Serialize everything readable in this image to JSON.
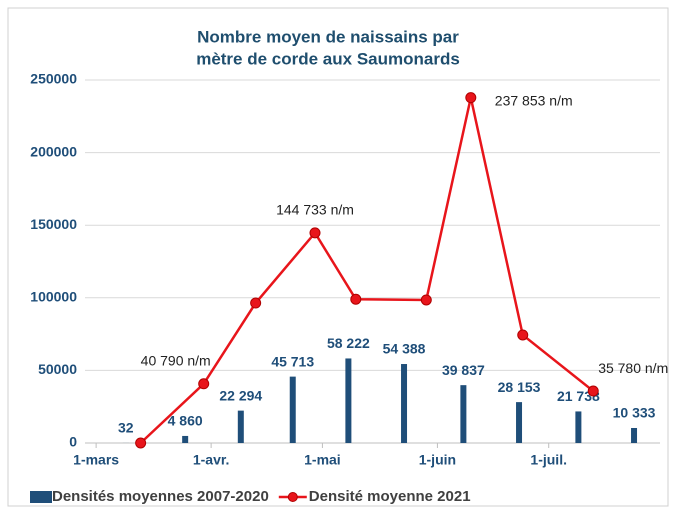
{
  "chart_data": {
    "type": "bar-line",
    "title": [
      "Nombre moyen de naissains par",
      "mètre de corde aux Saumonards"
    ],
    "xlim": [
      -3,
      152
    ],
    "xticks": [
      {
        "value": 0,
        "label": "1-mars"
      },
      {
        "value": 31,
        "label": "1-avr."
      },
      {
        "value": 61,
        "label": "1-mai"
      },
      {
        "value": 92,
        "label": "1-juin"
      },
      {
        "value": 122,
        "label": "1-juil."
      }
    ],
    "ylim": [
      0,
      250000
    ],
    "yticks": [
      0,
      50000,
      100000,
      150000,
      200000,
      250000
    ],
    "grid": true,
    "legend": "bottom",
    "series": [
      {
        "name": "Densités moyennes 2007-2020",
        "type": "bar",
        "color": "#1f4e79",
        "x": [
          8,
          24,
          39,
          53,
          68,
          83,
          99,
          114,
          130,
          145
        ],
        "values": [
          32,
          4860,
          22294,
          45713,
          58222,
          54388,
          39837,
          28153,
          21738,
          10333
        ],
        "value_labels": [
          "32",
          "4 860",
          "22 294",
          "45 713",
          "58 222",
          "54 388",
          "39 837",
          "28 153",
          "21 738",
          "10 333"
        ]
      },
      {
        "name": "Densité moyenne 2021",
        "type": "line",
        "color": "#e8151b",
        "x": [
          12,
          29,
          43,
          59,
          70,
          89,
          101,
          115,
          134
        ],
        "values": [
          0,
          40790,
          96400,
          144733,
          99000,
          98500,
          237853,
          74400,
          35780
        ],
        "value_labels": [
          null,
          "40 790 n/m",
          null,
          "144 733 n/m",
          null,
          null,
          "237 853 n/m",
          null,
          "35 780 n/m"
        ]
      }
    ]
  }
}
